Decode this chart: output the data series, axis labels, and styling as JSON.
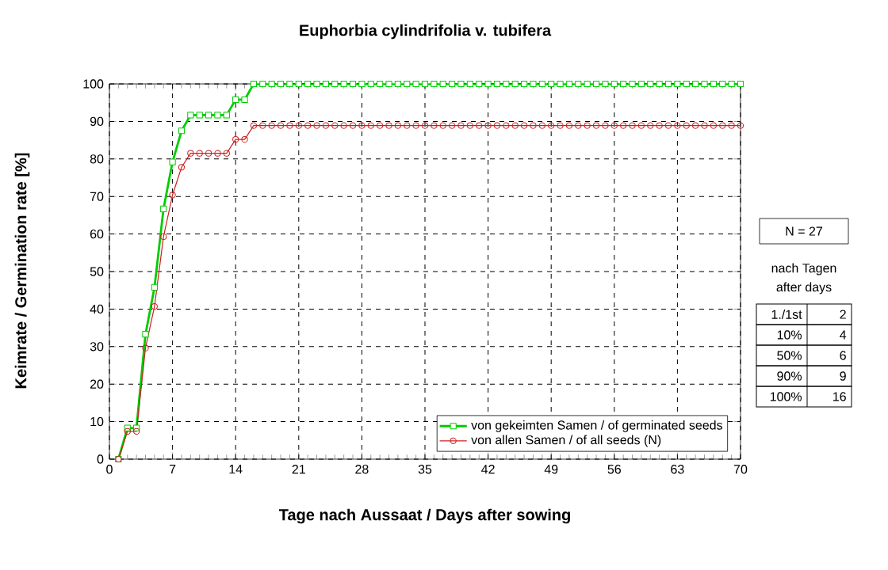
{
  "chart_data": {
    "type": "line",
    "title": "Euphorbia cylindrifolia v. tubifera",
    "xlabel": "Tage nach Aussaat / Days after sowing",
    "ylabel": "Keimrate / Germination rate [%]",
    "xlim": [
      0,
      70
    ],
    "xticks": [
      0,
      7,
      14,
      21,
      28,
      35,
      42,
      49,
      56,
      63,
      70
    ],
    "ylim": [
      0,
      100
    ],
    "yticks": [
      0,
      10,
      20,
      30,
      40,
      50,
      60,
      70,
      80,
      90,
      100
    ],
    "grid": true,
    "legend": "bottom right",
    "line_style": "solid",
    "x": [
      1,
      2,
      3,
      4,
      5,
      6,
      7,
      8,
      9,
      10,
      11,
      12,
      13,
      14,
      15,
      16,
      17,
      18,
      19,
      20,
      21,
      22,
      23,
      24,
      25,
      26,
      27,
      28,
      29,
      30,
      31,
      32,
      33,
      34,
      35,
      36,
      37,
      38,
      39,
      40,
      41,
      42,
      43,
      44,
      45,
      46,
      47,
      48,
      49,
      50,
      51,
      52,
      53,
      54,
      55,
      56,
      57,
      58,
      59,
      60,
      61,
      62,
      63,
      64,
      65,
      66,
      67,
      68,
      69,
      70
    ],
    "series": [
      {
        "name": "von gekeimten Samen / of germinated seeds",
        "color": "#00cc00",
        "marker": "square",
        "values": [
          0,
          8.3,
          8.3,
          33.3,
          45.8,
          66.7,
          79.2,
          87.5,
          91.7,
          91.7,
          91.7,
          91.7,
          91.7,
          95.8,
          95.8,
          100,
          100,
          100,
          100,
          100,
          100,
          100,
          100,
          100,
          100,
          100,
          100,
          100,
          100,
          100,
          100,
          100,
          100,
          100,
          100,
          100,
          100,
          100,
          100,
          100,
          100,
          100,
          100,
          100,
          100,
          100,
          100,
          100,
          100,
          100,
          100,
          100,
          100,
          100,
          100,
          100,
          100,
          100,
          100,
          100,
          100,
          100,
          100,
          100,
          100,
          100,
          100,
          100,
          100,
          100
        ]
      },
      {
        "name": "von allen Samen / of all seeds (N)",
        "color": "#cc2020",
        "marker": "circle",
        "values": [
          0,
          7.4,
          7.4,
          29.6,
          40.7,
          59.3,
          70.4,
          77.8,
          81.5,
          81.5,
          81.5,
          81.5,
          81.5,
          85.2,
          85.2,
          88.9,
          88.9,
          88.9,
          88.9,
          88.9,
          88.9,
          88.9,
          88.9,
          88.9,
          88.9,
          88.9,
          88.9,
          88.9,
          88.9,
          88.9,
          88.9,
          88.9,
          88.9,
          88.9,
          88.9,
          88.9,
          88.9,
          88.9,
          88.9,
          88.9,
          88.9,
          88.9,
          88.9,
          88.9,
          88.9,
          88.9,
          88.9,
          88.9,
          88.9,
          88.9,
          88.9,
          88.9,
          88.9,
          88.9,
          88.9,
          88.9,
          88.9,
          88.9,
          88.9,
          88.9,
          88.9,
          88.9,
          88.9,
          88.9,
          88.9,
          88.9,
          88.9,
          88.9,
          88.9,
          88.9
        ]
      }
    ],
    "annotations": [
      "N = 27",
      "nach Tagen",
      "after days",
      "1./1st",
      "2",
      "10%",
      "4",
      "50%",
      "6",
      "90%",
      "9",
      "100%",
      "16"
    ]
  }
}
